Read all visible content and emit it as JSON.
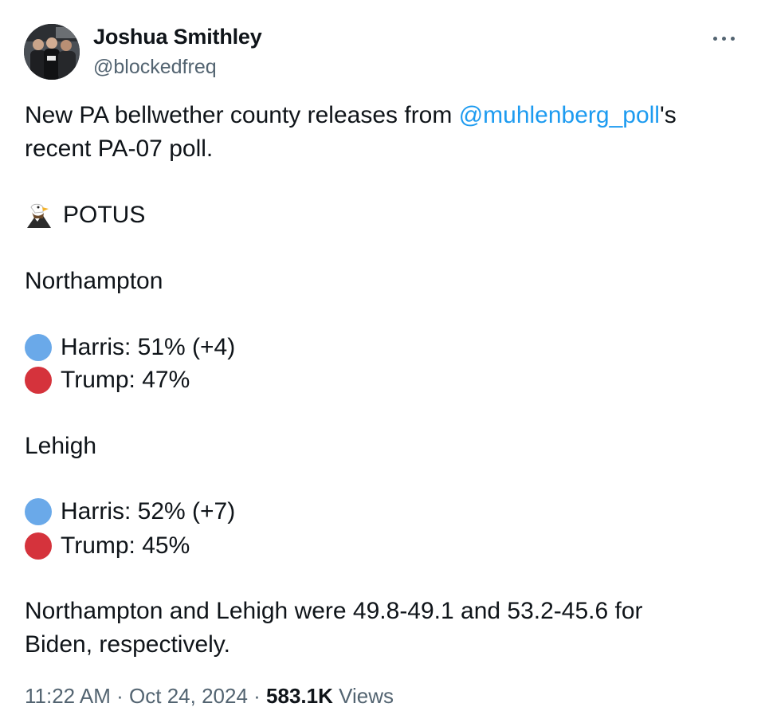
{
  "author": {
    "display_name": "Joshua Smithley",
    "handle": "@blockedfreq",
    "avatar_icon": "profile-photo"
  },
  "post": {
    "intro_before": "New PA bellwether county releases from ",
    "mention": "@muhlenberg_poll",
    "intro_after": "'s",
    "intro_line2": "recent PA-07 poll.",
    "race_icon": "eagle-icon",
    "race": "POTUS",
    "counties": [
      {
        "name": "Northampton",
        "results": [
          {
            "candidate_text": "Harris: 51% (+4)",
            "color": "#6aa9e9",
            "icon": "blue-circle-icon"
          },
          {
            "candidate_text": "Trump: 47%",
            "color": "#d5333c",
            "icon": "red-circle-icon"
          }
        ]
      },
      {
        "name": "Lehigh",
        "results": [
          {
            "candidate_text": "Harris: 52% (+7)",
            "color": "#6aa9e9",
            "icon": "blue-circle-icon"
          },
          {
            "candidate_text": "Trump: 45%",
            "color": "#d5333c",
            "icon": "red-circle-icon"
          }
        ]
      }
    ],
    "closing_line1": "Northampton and Lehigh were 49.8-49.1 and 53.2-45.6 for",
    "closing_line2": "Biden, respectively."
  },
  "meta": {
    "time": "11:22 AM",
    "separator": " · ",
    "date": "Oct 24, 2024",
    "views_count": "583.1K",
    "views_label": " Views"
  },
  "colors": {
    "text": "#0f1419",
    "secondary": "#536471",
    "link": "#1d9bf0"
  }
}
